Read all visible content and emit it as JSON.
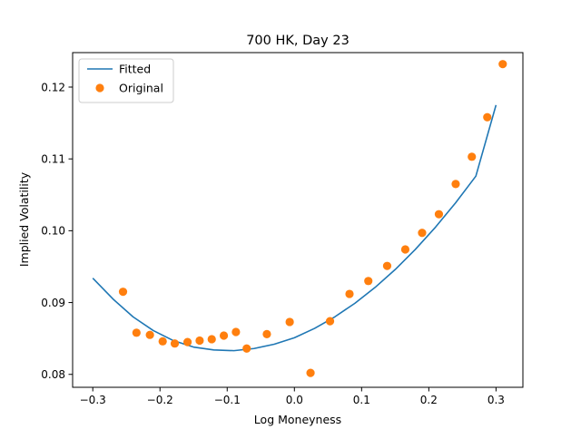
{
  "chart_data": {
    "type": "scatter",
    "title": "700 HK, Day 23",
    "xlabel": "Log Moneyness",
    "ylabel": "Implied Volatility",
    "xlim": [
      -0.33,
      0.34
    ],
    "ylim": [
      0.0782,
      0.1248
    ],
    "xticks": [
      -0.3,
      -0.2,
      -0.1,
      0.0,
      0.1,
      0.2,
      0.3
    ],
    "xtick_labels": [
      "−0.3",
      "−0.2",
      "−0.1",
      "0.0",
      "0.1",
      "0.2",
      "0.3"
    ],
    "yticks": [
      0.08,
      0.09,
      0.1,
      0.11,
      0.12
    ],
    "ytick_labels": [
      "0.08",
      "0.09",
      "0.10",
      "0.11",
      "0.12"
    ],
    "grid": false,
    "legend": "top-left",
    "series": [
      {
        "name": "Fitted",
        "kind": "line",
        "color": "#1f77b4",
        "x": [
          -0.3,
          -0.27,
          -0.24,
          -0.21,
          -0.18,
          -0.15,
          -0.12,
          -0.09,
          -0.06,
          -0.03,
          0.0,
          0.03,
          0.06,
          0.09,
          0.12,
          0.15,
          0.18,
          0.21,
          0.24,
          0.27,
          0.3
        ],
        "y": [
          0.0934,
          0.0905,
          0.088,
          0.0861,
          0.0847,
          0.0838,
          0.0834,
          0.0833,
          0.0836,
          0.0842,
          0.0851,
          0.0864,
          0.088,
          0.0899,
          0.0921,
          0.0946,
          0.0974,
          0.1005,
          0.1039,
          0.1076,
          0.1175
        ]
      },
      {
        "name": "Original",
        "kind": "scatter",
        "color": "#ff7f0e",
        "x": [
          -0.255,
          -0.235,
          -0.215,
          -0.196,
          -0.178,
          -0.159,
          -0.141,
          -0.123,
          -0.105,
          -0.087,
          -0.071,
          -0.041,
          -0.007,
          0.024,
          0.053,
          0.082,
          0.11,
          0.138,
          0.165,
          0.19,
          0.215,
          0.24,
          0.264,
          0.287,
          0.31
        ],
        "y": [
          0.0915,
          0.0858,
          0.0855,
          0.0846,
          0.0843,
          0.0845,
          0.0847,
          0.0849,
          0.0854,
          0.0859,
          0.0836,
          0.0856,
          0.0873,
          0.0802,
          0.0874,
          0.0912,
          0.093,
          0.0951,
          0.0974,
          0.0997,
          0.1023,
          0.1065,
          0.1103,
          0.1158,
          0.1232
        ]
      }
    ]
  }
}
